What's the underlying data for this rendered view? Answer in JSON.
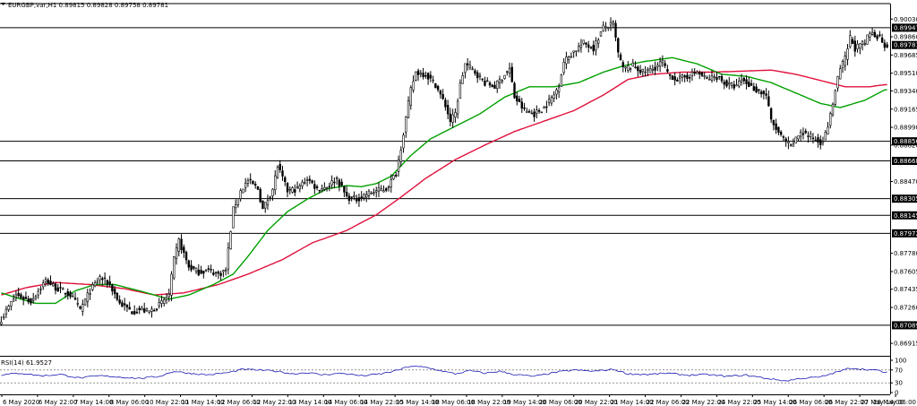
{
  "header": {
    "symbol_info": "EURGBP,var,H1  0.89815 0.89828 0.89758 0.89781",
    "menu_icon": "triangle-down-icon"
  },
  "rsi_label": "RSI(14) 61.9527",
  "colors": {
    "background": "#ffffff",
    "candle": "#000000",
    "ma_fast": "#00a000",
    "ma_slow": "#e0113c",
    "rsi_line": "#1c1cb4",
    "level_line": "#000000",
    "price_tag": "#000000",
    "price_tag_text": "#ffffff"
  },
  "chart_data": {
    "type": "candlestick",
    "title": "EURGBP,var,H1",
    "ylim": [
      0.8683,
      0.9011
    ],
    "y_ticks": [
      "0.90030",
      "0.89860",
      "0.89685",
      "0.89510",
      "0.89340",
      "0.89165",
      "0.88990",
      "0.88820",
      "0.88470",
      "0.87780",
      "0.87605",
      "0.87435",
      "0.87260",
      "0.86915"
    ],
    "horizontal_levels": [
      0.89947,
      0.88856,
      0.88668,
      0.88305,
      0.88145,
      0.87972,
      0.87089
    ],
    "current_price": 0.89781,
    "x_tick_labels": [
      "6 May 2020",
      "6 May 22:00",
      "7 May 14:00",
      "8 May 06:00",
      "10 May 22:00",
      "11 May 14:00",
      "12 May 06:00",
      "12 May 22:00",
      "13 May 14:00",
      "14 May 06:00",
      "14 May 22:00",
      "15 May 14:00",
      "18 May 06:00",
      "18 May 22:00",
      "19 May 14:00",
      "20 May 06:00",
      "20 May 22:00",
      "21 May 14:00",
      "22 May 06:00",
      "22 May 22:00",
      "24 May 22:00",
      "25 May 14:00",
      "26 May 06:00",
      "26 May 22:00",
      "27 May 14:00",
      "28 May 06:00"
    ],
    "close_anchors": [
      [
        0,
        0.8715
      ],
      [
        6,
        0.8738
      ],
      [
        12,
        0.8732
      ],
      [
        18,
        0.8752
      ],
      [
        22,
        0.8745
      ],
      [
        28,
        0.8738
      ],
      [
        32,
        0.8724
      ],
      [
        36,
        0.8742
      ],
      [
        40,
        0.8755
      ],
      [
        44,
        0.8748
      ],
      [
        48,
        0.873
      ],
      [
        53,
        0.8722
      ],
      [
        56,
        0.8724
      ],
      [
        60,
        0.8722
      ],
      [
        64,
        0.8728
      ],
      [
        68,
        0.8738
      ],
      [
        70,
        0.8772
      ],
      [
        72,
        0.879
      ],
      [
        76,
        0.8765
      ],
      [
        80,
        0.876
      ],
      [
        84,
        0.8762
      ],
      [
        88,
        0.8758
      ],
      [
        91,
        0.8762
      ],
      [
        94,
        0.882
      ],
      [
        97,
        0.8838
      ],
      [
        100,
        0.8848
      ],
      [
        104,
        0.884
      ],
      [
        106,
        0.882
      ],
      [
        110,
        0.884
      ],
      [
        112,
        0.8862
      ],
      [
        116,
        0.8838
      ],
      [
        120,
        0.884
      ],
      [
        124,
        0.885
      ],
      [
        128,
        0.884
      ],
      [
        132,
        0.8842
      ],
      [
        136,
        0.885
      ],
      [
        140,
        0.8832
      ],
      [
        144,
        0.883
      ],
      [
        148,
        0.8835
      ],
      [
        152,
        0.8838
      ],
      [
        156,
        0.884
      ],
      [
        160,
        0.8855
      ],
      [
        162,
        0.888
      ],
      [
        164,
        0.8908
      ],
      [
        166,
        0.8935
      ],
      [
        168,
        0.8952
      ],
      [
        172,
        0.895
      ],
      [
        176,
        0.894
      ],
      [
        180,
        0.892
      ],
      [
        182,
        0.8905
      ],
      [
        184,
        0.8912
      ],
      [
        186,
        0.894
      ],
      [
        188,
        0.896
      ],
      [
        192,
        0.8952
      ],
      [
        196,
        0.8942
      ],
      [
        200,
        0.8938
      ],
      [
        204,
        0.895
      ],
      [
        206,
        0.8955
      ],
      [
        208,
        0.8928
      ],
      [
        212,
        0.8915
      ],
      [
        216,
        0.8912
      ],
      [
        220,
        0.8918
      ],
      [
        224,
        0.893
      ],
      [
        226,
        0.894
      ],
      [
        228,
        0.8962
      ],
      [
        232,
        0.8972
      ],
      [
        236,
        0.898
      ],
      [
        240,
        0.8975
      ],
      [
        244,
        0.8995
      ],
      [
        248,
        0.8998
      ],
      [
        250,
        0.897
      ],
      [
        252,
        0.8955
      ],
      [
        256,
        0.8958
      ],
      [
        260,
        0.8952
      ],
      [
        264,
        0.8955
      ],
      [
        268,
        0.8962
      ],
      [
        270,
        0.895
      ],
      [
        274,
        0.8945
      ],
      [
        278,
        0.8948
      ],
      [
        282,
        0.8952
      ],
      [
        286,
        0.8945
      ],
      [
        290,
        0.8948
      ],
      [
        294,
        0.894
      ],
      [
        298,
        0.8938
      ],
      [
        300,
        0.8945
      ],
      [
        304,
        0.8938
      ],
      [
        306,
        0.8935
      ],
      [
        310,
        0.893
      ],
      [
        312,
        0.8905
      ],
      [
        316,
        0.889
      ],
      [
        320,
        0.888
      ],
      [
        324,
        0.8895
      ],
      [
        328,
        0.889
      ],
      [
        332,
        0.8885
      ],
      [
        334,
        0.8892
      ],
      [
        336,
        0.891
      ],
      [
        338,
        0.8935
      ],
      [
        340,
        0.8955
      ],
      [
        342,
        0.8965
      ],
      [
        344,
        0.8985
      ],
      [
        346,
        0.8975
      ],
      [
        350,
        0.898
      ],
      [
        352,
        0.899
      ],
      [
        356,
        0.8986
      ],
      [
        358,
        0.8978
      ]
    ],
    "ma_fast_anchors": [
      [
        0,
        0.874
      ],
      [
        8,
        0.8734
      ],
      [
        14,
        0.873
      ],
      [
        22,
        0.873
      ],
      [
        30,
        0.8742
      ],
      [
        38,
        0.8748
      ],
      [
        46,
        0.8748
      ],
      [
        56,
        0.8742
      ],
      [
        62,
        0.8738
      ],
      [
        68,
        0.8734
      ],
      [
        76,
        0.8738
      ],
      [
        86,
        0.8748
      ],
      [
        94,
        0.8758
      ],
      [
        100,
        0.8775
      ],
      [
        108,
        0.88
      ],
      [
        116,
        0.8818
      ],
      [
        124,
        0.883
      ],
      [
        132,
        0.884
      ],
      [
        140,
        0.8843
      ],
      [
        146,
        0.8842
      ],
      [
        152,
        0.8845
      ],
      [
        158,
        0.8852
      ],
      [
        166,
        0.8872
      ],
      [
        174,
        0.8888
      ],
      [
        184,
        0.89
      ],
      [
        194,
        0.8912
      ],
      [
        204,
        0.8928
      ],
      [
        214,
        0.8938
      ],
      [
        224,
        0.8938
      ],
      [
        234,
        0.8942
      ],
      [
        244,
        0.8952
      ],
      [
        252,
        0.8958
      ],
      [
        260,
        0.8962
      ],
      [
        272,
        0.8966
      ],
      [
        282,
        0.896
      ],
      [
        292,
        0.895
      ],
      [
        302,
        0.8948
      ],
      [
        312,
        0.8942
      ],
      [
        322,
        0.8932
      ],
      [
        332,
        0.8922
      ],
      [
        340,
        0.8918
      ],
      [
        350,
        0.8925
      ],
      [
        358,
        0.8935
      ]
    ],
    "ma_slow_anchors": [
      [
        0,
        0.8738
      ],
      [
        10,
        0.8745
      ],
      [
        22,
        0.875
      ],
      [
        36,
        0.8748
      ],
      [
        50,
        0.8744
      ],
      [
        62,
        0.8738
      ],
      [
        74,
        0.874
      ],
      [
        88,
        0.8748
      ],
      [
        100,
        0.8758
      ],
      [
        114,
        0.8772
      ],
      [
        126,
        0.8788
      ],
      [
        140,
        0.88
      ],
      [
        152,
        0.8815
      ],
      [
        162,
        0.8832
      ],
      [
        172,
        0.885
      ],
      [
        184,
        0.8868
      ],
      [
        196,
        0.8882
      ],
      [
        208,
        0.8895
      ],
      [
        220,
        0.8905
      ],
      [
        232,
        0.8915
      ],
      [
        244,
        0.893
      ],
      [
        254,
        0.8945
      ],
      [
        264,
        0.895
      ],
      [
        276,
        0.8952
      ],
      [
        288,
        0.8952
      ],
      [
        300,
        0.8953
      ],
      [
        312,
        0.8954
      ],
      [
        322,
        0.895
      ],
      [
        332,
        0.8944
      ],
      [
        342,
        0.8938
      ],
      [
        352,
        0.8938
      ],
      [
        358,
        0.894
      ]
    ],
    "rsi": {
      "name": "RSI(14)",
      "value": 61.9527,
      "ylim": [
        0,
        100
      ],
      "levels": [
        70,
        30
      ],
      "y_ticks": [
        "100",
        "70",
        "30",
        "0"
      ],
      "anchors": [
        [
          0,
          55
        ],
        [
          8,
          60
        ],
        [
          16,
          52
        ],
        [
          24,
          56
        ],
        [
          32,
          45
        ],
        [
          40,
          52
        ],
        [
          48,
          48
        ],
        [
          56,
          44
        ],
        [
          64,
          50
        ],
        [
          70,
          66
        ],
        [
          76,
          60
        ],
        [
          84,
          55
        ],
        [
          92,
          62
        ],
        [
          98,
          72
        ],
        [
          104,
          70
        ],
        [
          112,
          66
        ],
        [
          118,
          58
        ],
        [
          124,
          62
        ],
        [
          130,
          55
        ],
        [
          138,
          60
        ],
        [
          146,
          52
        ],
        [
          154,
          58
        ],
        [
          160,
          68
        ],
        [
          166,
          82
        ],
        [
          172,
          78
        ],
        [
          178,
          68
        ],
        [
          184,
          58
        ],
        [
          190,
          68
        ],
        [
          196,
          60
        ],
        [
          202,
          66
        ],
        [
          208,
          56
        ],
        [
          216,
          50
        ],
        [
          224,
          62
        ],
        [
          232,
          70
        ],
        [
          240,
          66
        ],
        [
          248,
          72
        ],
        [
          254,
          58
        ],
        [
          262,
          56
        ],
        [
          270,
          60
        ],
        [
          278,
          54
        ],
        [
          286,
          56
        ],
        [
          294,
          50
        ],
        [
          302,
          54
        ],
        [
          310,
          44
        ],
        [
          318,
          36
        ],
        [
          324,
          44
        ],
        [
          332,
          48
        ],
        [
          338,
          62
        ],
        [
          344,
          76
        ],
        [
          350,
          72
        ],
        [
          356,
          68
        ],
        [
          358,
          62
        ]
      ]
    }
  }
}
